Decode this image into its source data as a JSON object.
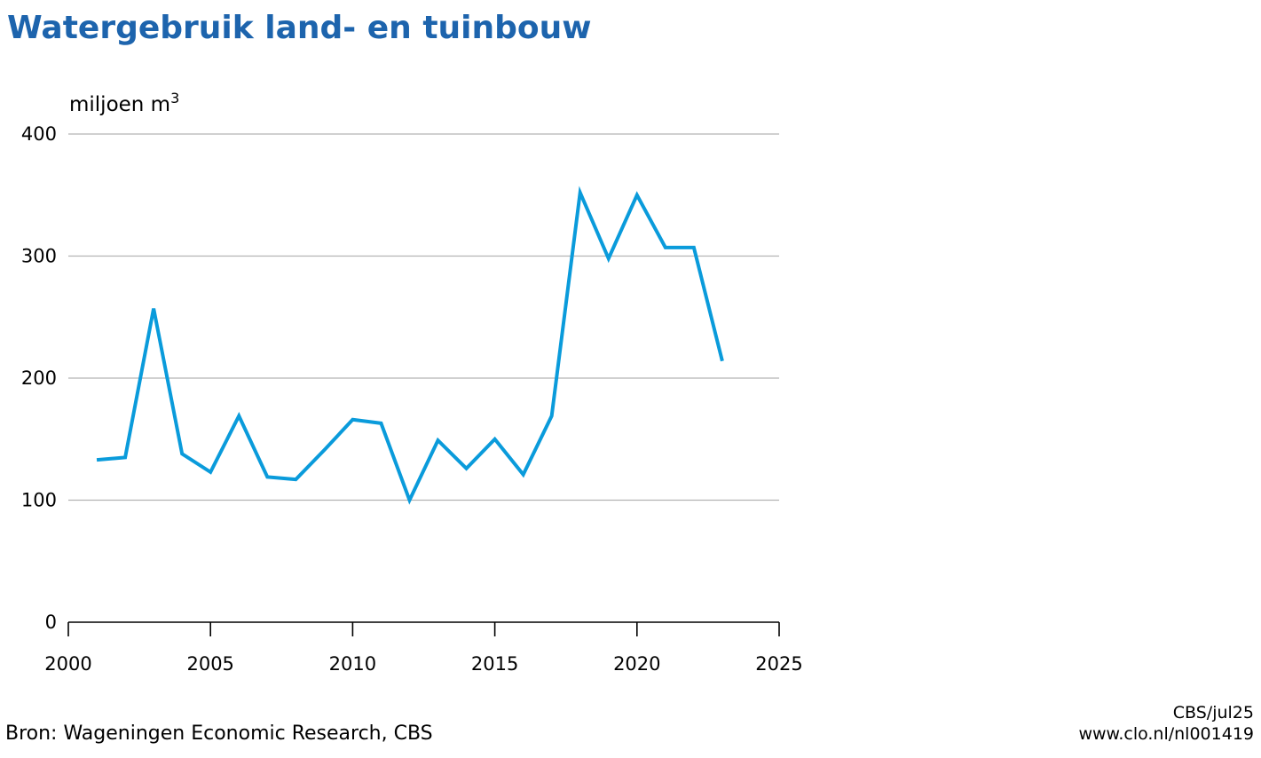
{
  "colors": {
    "title": "#1d64ad",
    "line": "#0a9bdb",
    "grid": "#b3b3b3",
    "axis": "#000000"
  },
  "footer": {
    "source": "Bron: Wageningen Economic Research, CBS",
    "credit": "CBS/jul25",
    "url": "www.clo.nl/nl001419"
  },
  "chart_data": {
    "type": "line",
    "title": "Watergebruik land- en tuinbouw",
    "ylabel": "miljoen m",
    "ylabel_superscript": "3",
    "xlabel": "",
    "xlim": [
      2000,
      2025
    ],
    "ylim": [
      0,
      400
    ],
    "xticks": [
      2000,
      2005,
      2010,
      2015,
      2020,
      2025
    ],
    "yticks": [
      0,
      100,
      200,
      300,
      400
    ],
    "grid": true,
    "legend": "none",
    "series": [
      {
        "x": [
          2001,
          2002,
          2003,
          2004,
          2005,
          2006,
          2007,
          2008,
          2009,
          2010,
          2011,
          2012,
          2013,
          2014,
          2015,
          2016,
          2017,
          2018,
          2019,
          2020,
          2021,
          2022,
          2023
        ],
        "values": [
          133,
          135,
          257,
          138,
          123,
          169,
          119,
          117,
          141,
          166,
          163,
          100,
          149,
          126,
          150,
          121,
          169,
          352,
          298,
          350,
          307,
          307,
          214
        ]
      }
    ]
  }
}
